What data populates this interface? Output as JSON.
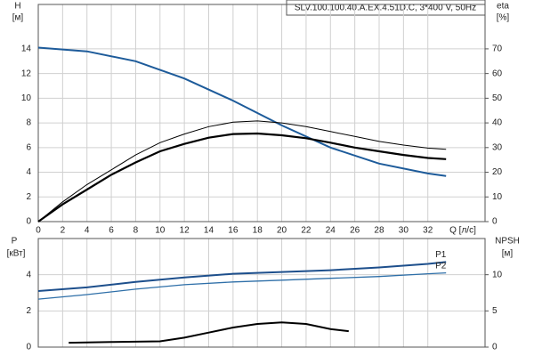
{
  "chart_data": [
    {
      "type": "line",
      "title": "SLV.100.100.40.A.EX.4.51D.C, 3*400 V, 50Hz",
      "ylabel": "H",
      "yunit": "[м]",
      "y2label": "eta",
      "y2unit": "[%]",
      "xlabel": "Q [л/с]",
      "xlim": [
        0,
        36.7
      ],
      "xticks": [
        0,
        2,
        4,
        6,
        8,
        10,
        12,
        14,
        16,
        18,
        20,
        22,
        24,
        26,
        28,
        30,
        32
      ],
      "ylim": [
        0,
        17.6
      ],
      "yticks": [
        0,
        2,
        4,
        6,
        8,
        10,
        12,
        14
      ],
      "y2lim": [
        0,
        88
      ],
      "y2ticks": [
        0,
        10,
        20,
        30,
        40,
        50,
        60,
        70
      ],
      "grid": true,
      "series": [
        {
          "color": "#1d5b9a",
          "width": 2,
          "axis": "y",
          "x": [
            0,
            4,
            8,
            12,
            16,
            20,
            24,
            28,
            32,
            33.5
          ],
          "values": [
            14.1,
            13.8,
            13,
            11.6,
            9.8,
            7.8,
            6.0,
            4.7,
            3.9,
            3.7
          ]
        },
        {
          "color": "#000000",
          "width": 2.2,
          "axis": "y2",
          "x": [
            0,
            2,
            4,
            6,
            8,
            10,
            12,
            14,
            16,
            18,
            20,
            22,
            24,
            26,
            28,
            30,
            32,
            33.5
          ],
          "values": [
            0,
            7,
            13,
            19,
            24,
            28.5,
            31.5,
            34,
            35.5,
            35.7,
            35,
            33.8,
            32,
            30,
            28.5,
            27,
            25.8,
            25.3
          ]
        },
        {
          "color": "#000000",
          "width": 1,
          "axis": "y2",
          "x": [
            0,
            2,
            4,
            6,
            8,
            10,
            12,
            14,
            16,
            18,
            20,
            22,
            24,
            26,
            28,
            30,
            32,
            33.5
          ],
          "values": [
            0,
            8,
            15,
            21,
            27,
            32,
            35.5,
            38.5,
            40.3,
            40.8,
            40,
            38.5,
            36.5,
            34.5,
            32.5,
            31,
            29.8,
            29.3
          ]
        }
      ]
    },
    {
      "type": "line",
      "ylabel": "P",
      "yunit": "[кВт]",
      "y2label": "NPSH",
      "y2unit": "[м]",
      "xlim": [
        0,
        36.7
      ],
      "xticks": [
        0,
        2,
        4,
        6,
        8,
        10,
        12,
        14,
        16,
        18,
        20,
        22,
        24,
        26,
        28,
        30,
        32
      ],
      "ylim": [
        0,
        6
      ],
      "yticks": [
        0,
        2,
        4
      ],
      "y2lim": [
        0,
        15
      ],
      "y2ticks": [
        0,
        5,
        10
      ],
      "grid": true,
      "series": [
        {
          "name": "P1",
          "color": "#1d4f8c",
          "width": 2,
          "axis": "y",
          "x": [
            0,
            4,
            8,
            12,
            16,
            20,
            24,
            28,
            32,
            33.5
          ],
          "values": [
            3.1,
            3.3,
            3.6,
            3.85,
            4.05,
            4.15,
            4.25,
            4.4,
            4.6,
            4.7
          ]
        },
        {
          "name": "P2",
          "color": "#2e6fa8",
          "width": 1.3,
          "axis": "y",
          "x": [
            0,
            4,
            8,
            12,
            16,
            20,
            24,
            28,
            32,
            33.5
          ],
          "values": [
            2.65,
            2.9,
            3.2,
            3.45,
            3.6,
            3.7,
            3.8,
            3.9,
            4.05,
            4.1
          ]
        },
        {
          "color": "#000000",
          "width": 2,
          "axis": "y2",
          "x": [
            2.5,
            6,
            10,
            12,
            14,
            16,
            18,
            20,
            22,
            24,
            25.5
          ],
          "values": [
            0.6,
            0.7,
            0.8,
            1.3,
            2.0,
            2.7,
            3.2,
            3.4,
            3.2,
            2.5,
            2.2
          ]
        }
      ]
    }
  ]
}
